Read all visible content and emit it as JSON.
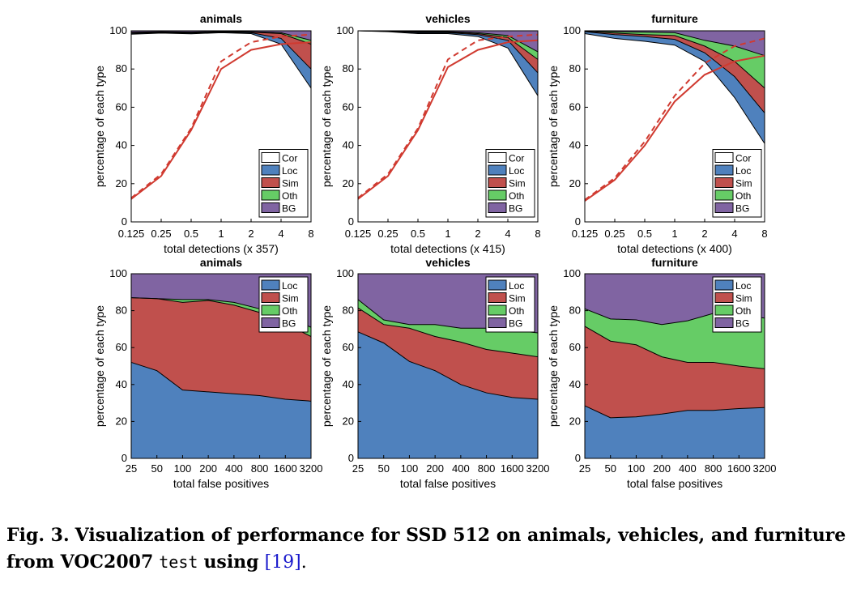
{
  "caption": {
    "label": "Fig. 3.",
    "text_before": "Visualization of performance for SSD 512 on animals, vehicles, and furniture from VOC2007",
    "mono": "test",
    "text_using": "using",
    "cite_open": "[",
    "cite": "19",
    "cite_close": "]",
    "end": "."
  },
  "colors": {
    "Cor": "#ffffff",
    "Loc": "#4f81bd",
    "Sim": "#c0504d",
    "Oth": "#66cc66",
    "BG": "#8064a2",
    "recall_line": "#d03a30"
  },
  "chart_data": [
    {
      "type": "area",
      "title": "animals",
      "xlabel": "total detections (x 357)",
      "ylabel": "percentage of each type",
      "x": [
        0.125,
        0.25,
        0.5,
        1,
        2,
        4,
        8
      ],
      "x_tick_labels": [
        "0.125",
        "0.25",
        "0.5",
        "1",
        "2",
        "4",
        "8"
      ],
      "ylim": [
        0,
        100
      ],
      "y_ticks": [
        0,
        20,
        40,
        60,
        80,
        100
      ],
      "legend": [
        "Cor",
        "Loc",
        "Sim",
        "Oth",
        "BG"
      ],
      "legend_position": "bottom-right",
      "stacked_boundaries": [
        {
          "name": "Cor",
          "values": [
            98.2,
            98.8,
            98.4,
            99,
            98.5,
            93,
            70
          ]
        },
        {
          "name": "Loc",
          "values": [
            98.6,
            99.1,
            98.8,
            99.3,
            99,
            96,
            80
          ]
        },
        {
          "name": "Sim",
          "values": [
            99,
            99.3,
            99,
            99.5,
            99.3,
            98.5,
            93
          ]
        },
        {
          "name": "Oth",
          "values": [
            99.2,
            99.5,
            99.3,
            99.7,
            99.5,
            99,
            95
          ]
        }
      ],
      "recall_lines": [
        {
          "style": "solid",
          "values": [
            12,
            24,
            48,
            80,
            90,
            93,
            94
          ]
        },
        {
          "style": "dashed",
          "values": [
            12.5,
            25,
            49,
            84,
            94,
            97,
            98
          ]
        }
      ]
    },
    {
      "type": "area",
      "title": "vehicles",
      "xlabel": "total detections (x 415)",
      "ylabel": "percentage of each type",
      "x": [
        0.125,
        0.25,
        0.5,
        1,
        2,
        4,
        8
      ],
      "x_tick_labels": [
        "0.125",
        "0.25",
        "0.5",
        "1",
        "2",
        "4",
        "8"
      ],
      "ylim": [
        0,
        100
      ],
      "y_ticks": [
        0,
        20,
        40,
        60,
        80,
        100
      ],
      "legend": [
        "Cor",
        "Loc",
        "Sim",
        "Oth",
        "BG"
      ],
      "legend_position": "bottom-right",
      "stacked_boundaries": [
        {
          "name": "Cor",
          "values": [
            100,
            99.5,
            98.5,
            98.5,
            97,
            91,
            66
          ]
        },
        {
          "name": "Loc",
          "values": [
            100,
            99.7,
            99,
            99,
            98,
            95,
            78
          ]
        },
        {
          "name": "Sim",
          "values": [
            100,
            99.8,
            99.3,
            99.3,
            98.5,
            96.5,
            85
          ]
        },
        {
          "name": "Oth",
          "values": [
            100,
            99.9,
            99.6,
            99.6,
            99,
            97.5,
            89
          ]
        }
      ],
      "recall_lines": [
        {
          "style": "solid",
          "values": [
            12,
            24,
            48,
            81,
            90,
            94,
            95
          ]
        },
        {
          "style": "dashed",
          "values": [
            12.5,
            25,
            49,
            85,
            95,
            97,
            98
          ]
        }
      ]
    },
    {
      "type": "area",
      "title": "furniture",
      "xlabel": "total detections (x 400)",
      "ylabel": "percentage of each type",
      "x": [
        0.125,
        0.25,
        0.5,
        1,
        2,
        4,
        8
      ],
      "x_tick_labels": [
        "0.125",
        "0.25",
        "0.5",
        "1",
        "2",
        "4",
        "8"
      ],
      "ylim": [
        0,
        100
      ],
      "y_ticks": [
        0,
        20,
        40,
        60,
        80,
        100
      ],
      "legend": [
        "Cor",
        "Loc",
        "Sim",
        "Oth",
        "BG"
      ],
      "legend_position": "bottom-right",
      "stacked_boundaries": [
        {
          "name": "Cor",
          "values": [
            98.5,
            96,
            94.5,
            92.5,
            84,
            65,
            41
          ]
        },
        {
          "name": "Loc",
          "values": [
            99.5,
            98,
            97,
            95.5,
            88.5,
            76,
            57
          ]
        },
        {
          "name": "Sim",
          "values": [
            99.8,
            98.8,
            98,
            97.5,
            92,
            84,
            70
          ]
        },
        {
          "name": "Oth",
          "values": [
            100,
            99.5,
            99.3,
            99,
            95,
            92,
            87
          ]
        }
      ],
      "recall_lines": [
        {
          "style": "solid",
          "values": [
            11,
            22,
            40,
            63,
            77,
            84,
            87
          ]
        },
        {
          "style": "dashed",
          "values": [
            11.5,
            23,
            42,
            66,
            83,
            92,
            96
          ]
        }
      ]
    },
    {
      "type": "area",
      "title": "animals",
      "xlabel": "total false positives",
      "ylabel": "percentage of each type",
      "x_tick_labels": [
        "25",
        "50",
        "100",
        "200",
        "400",
        "800",
        "1600",
        "3200"
      ],
      "ylim": [
        0,
        100
      ],
      "y_ticks": [
        0,
        20,
        40,
        60,
        80,
        100
      ],
      "legend": [
        "Loc",
        "Sim",
        "Oth",
        "BG"
      ],
      "legend_position": "top-right",
      "stacked_boundaries": [
        {
          "name": "Loc",
          "values": [
            52,
            47.5,
            37,
            36,
            35,
            34,
            32,
            31
          ]
        },
        {
          "name": "Sim",
          "values": [
            87,
            86.5,
            84.5,
            85.5,
            83,
            79,
            73,
            66
          ]
        },
        {
          "name": "Oth",
          "values": [
            87,
            86.5,
            86,
            86,
            84.5,
            81,
            77,
            71
          ]
        }
      ]
    },
    {
      "type": "area",
      "title": "vehicles",
      "xlabel": "total false positives",
      "ylabel": "percentage of each type",
      "x_tick_labels": [
        "25",
        "50",
        "100",
        "200",
        "400",
        "800",
        "1600",
        "3200"
      ],
      "ylim": [
        0,
        100
      ],
      "y_ticks": [
        0,
        20,
        40,
        60,
        80,
        100
      ],
      "legend": [
        "Loc",
        "Sim",
        "Oth",
        "BG"
      ],
      "legend_position": "top-right",
      "stacked_boundaries": [
        {
          "name": "Loc",
          "values": [
            68.5,
            62.5,
            52.5,
            47.5,
            40,
            35.5,
            33,
            32
          ]
        },
        {
          "name": "Sim",
          "values": [
            81.5,
            72.5,
            70.5,
            66,
            63,
            59,
            57,
            55
          ]
        },
        {
          "name": "Oth",
          "values": [
            86,
            75,
            72.5,
            72.5,
            70.5,
            70.5,
            69.5,
            68
          ]
        }
      ]
    },
    {
      "type": "area",
      "title": "furniture",
      "xlabel": "total false positives",
      "ylabel": "percentage of each type",
      "x_tick_labels": [
        "25",
        "50",
        "100",
        "200",
        "400",
        "800",
        "1600",
        "3200"
      ],
      "ylim": [
        0,
        100
      ],
      "y_ticks": [
        0,
        20,
        40,
        60,
        80,
        100
      ],
      "legend": [
        "Loc",
        "Sim",
        "Oth",
        "BG"
      ],
      "legend_position": "top-right",
      "stacked_boundaries": [
        {
          "name": "Loc",
          "values": [
            28.5,
            22,
            22.5,
            24,
            26,
            26,
            27,
            27.5
          ]
        },
        {
          "name": "Sim",
          "values": [
            71.5,
            63.5,
            61.5,
            55,
            52,
            52,
            50,
            48.5
          ]
        },
        {
          "name": "Oth",
          "values": [
            81,
            75.5,
            75,
            72.5,
            74.5,
            78.5,
            77.5,
            76
          ]
        }
      ]
    }
  ]
}
